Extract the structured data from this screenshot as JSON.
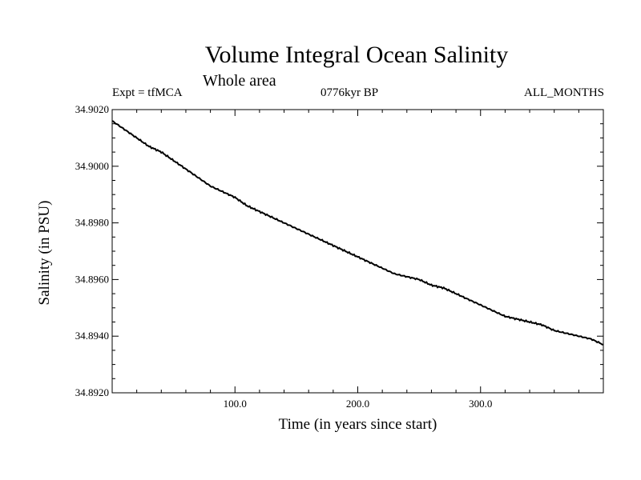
{
  "header": {
    "title": "Volume Integral Ocean Salinity",
    "subtitle": "Whole area",
    "expt": "Expt = tfMCA",
    "period": "0776kyr BP",
    "months": "ALL_MONTHS"
  },
  "chart_data": {
    "type": "line",
    "title": "Volume Integral Ocean Salinity",
    "subtitle": "Whole area",
    "xlabel": "Time (in years since start)",
    "ylabel": "Salinity (in PSU)",
    "xlim": [
      0,
      400
    ],
    "ylim": [
      34.892,
      34.902
    ],
    "xticks": [
      100,
      200,
      300
    ],
    "xtick_labels": [
      "100.0",
      "200.0",
      "300.0"
    ],
    "yticks": [
      34.892,
      34.894,
      34.896,
      34.898,
      34.9,
      34.902
    ],
    "ytick_labels": [
      "34.8920",
      "34.8940",
      "34.8960",
      "34.8980",
      "34.9000",
      "34.9020"
    ],
    "grid": false,
    "series": [
      {
        "x": [
          0,
          10,
          20,
          30,
          40,
          50,
          60,
          70,
          80,
          90,
          100,
          110,
          120,
          130,
          140,
          150,
          160,
          170,
          180,
          190,
          200,
          210,
          220,
          230,
          240,
          250,
          260,
          270,
          280,
          290,
          300,
          310,
          320,
          330,
          340,
          350,
          360,
          370,
          380,
          390,
          400
        ],
        "y": [
          34.9016,
          34.9013,
          34.901,
          34.9007,
          34.9005,
          34.9002,
          34.8999,
          34.8996,
          34.8993,
          34.8991,
          34.8989,
          34.8986,
          34.8984,
          34.8982,
          34.898,
          34.8978,
          34.8976,
          34.8974,
          34.8972,
          34.897,
          34.8968,
          34.8966,
          34.8964,
          34.8962,
          34.8961,
          34.896,
          34.8958,
          34.8957,
          34.8955,
          34.8953,
          34.8951,
          34.8949,
          34.8947,
          34.8946,
          34.8945,
          34.8944,
          34.8942,
          34.8941,
          34.894,
          34.8939,
          34.8937
        ]
      }
    ]
  }
}
